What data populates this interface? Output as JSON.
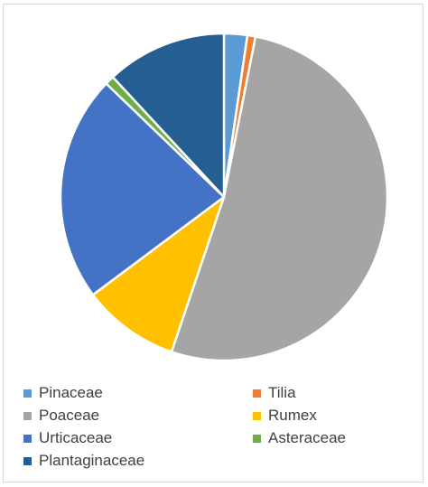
{
  "chart_data": {
    "type": "pie",
    "title": "",
    "categories": [
      "Pinaceae",
      "Tilia",
      "Poaceae",
      "Rumex",
      "Urticaceae",
      "Asteraceae",
      "Plantaginaceae"
    ],
    "values": [
      2.3,
      0.8,
      52.1,
      9.6,
      22.4,
      0.9,
      11.9
    ],
    "colors": [
      "#5b9bd5",
      "#ed7d31",
      "#a5a5a5",
      "#ffc000",
      "#4472c4",
      "#70ad47",
      "#255e91"
    ],
    "legend_position": "bottom",
    "start_angle_deg": 0,
    "direction": "clockwise"
  }
}
